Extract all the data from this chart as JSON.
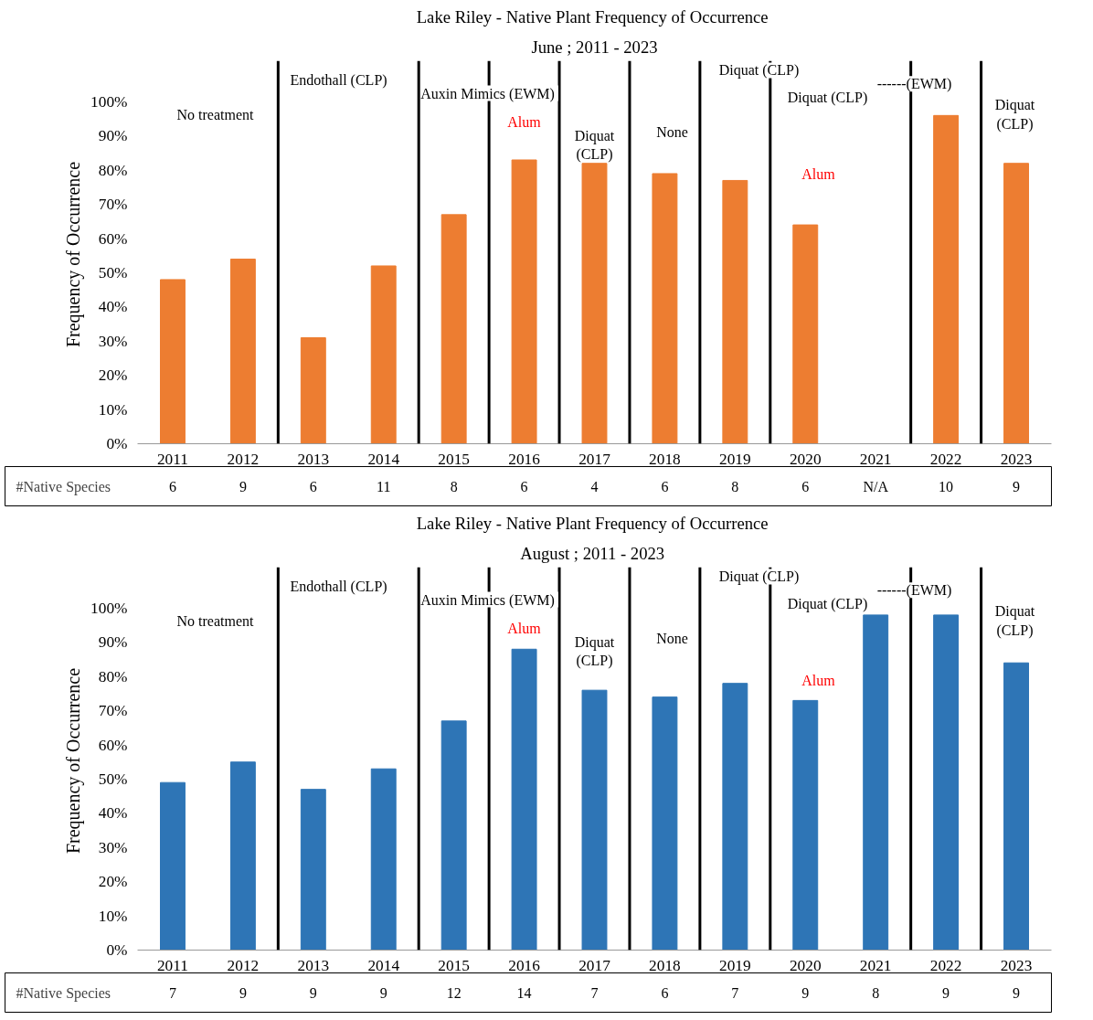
{
  "chart_data": [
    {
      "type": "bar",
      "title": "Lake Riley - Native Plant Frequency  of Occurrence",
      "subtitle": "June ; 2011 - 2023",
      "ylabel": "Frequency  of Occurrence",
      "x": [
        2011,
        2012,
        2013,
        2014,
        2015,
        2016,
        2017,
        2018,
        2019,
        2020,
        2021,
        2022,
        2023
      ],
      "values": [
        48,
        54,
        31,
        52,
        67,
        83,
        82,
        79,
        77,
        64,
        null,
        96,
        82
      ],
      "color": "#ed7d31",
      "xlim": [
        2010.5,
        2023.5
      ],
      "xticks": [
        2011,
        2012,
        2013,
        2014,
        2015,
        2016,
        2017,
        2018,
        2019,
        2020,
        2021,
        2022,
        2023
      ],
      "ylim": [
        0,
        112
      ],
      "yticks": [
        {
          "value": 0,
          "label": "0%"
        },
        {
          "value": 10,
          "label": "10%"
        },
        {
          "value": 20,
          "label": "20%"
        },
        {
          "value": 30,
          "label": "30%"
        },
        {
          "value": 40,
          "label": "40%"
        },
        {
          "value": 50,
          "label": "50%"
        },
        {
          "value": 60,
          "label": "60%"
        },
        {
          "value": 70,
          "label": "70%"
        },
        {
          "value": 80,
          "label": "80%"
        },
        {
          "value": 90,
          "label": "90%"
        },
        {
          "value": 100,
          "label": "100%"
        }
      ],
      "grid": false,
      "ref_lines": [
        {
          "axis": "x",
          "value": 2012.5,
          "color": "#000000"
        },
        {
          "axis": "x",
          "value": 2014.5,
          "color": "#000000"
        },
        {
          "axis": "x",
          "value": 2015.5,
          "color": "#000000"
        },
        {
          "axis": "x",
          "value": 2016.5,
          "color": "#000000"
        },
        {
          "axis": "x",
          "value": 2017.5,
          "color": "#000000"
        },
        {
          "axis": "x",
          "value": 2018.5,
          "color": "#000000"
        },
        {
          "axis": "x",
          "value": 2019.5,
          "color": "#000000"
        },
        {
          "axis": "x",
          "value": 2021.5,
          "color": "#000000"
        },
        {
          "axis": "x",
          "value": 2022.5,
          "color": "#000000"
        }
      ],
      "annotations": [
        "No treatment",
        "Endothall (CLP)",
        "Auxin Mimics  (EWM)",
        "Alum",
        "Diquat\n(CLP)",
        "None",
        "Diquat (CLP)",
        "Diquat (CLP)",
        "Alum",
        "------(EWM)",
        "Diquat\n(CLP)"
      ]
    },
    {
      "type": "other",
      "title": "#Native Species",
      "annotations": [
        "6",
        "9",
        "6",
        "11",
        "8",
        "6",
        "4",
        "6",
        "8",
        "6",
        "N/A",
        "10",
        "9"
      ]
    },
    {
      "type": "bar",
      "title": "Lake Riley - Native Plant Frequency  of Occurrence",
      "subtitle": "August  ; 2011 - 2023",
      "ylabel": "Frequency  of Occurrence",
      "x": [
        2011,
        2012,
        2013,
        2014,
        2015,
        2016,
        2017,
        2018,
        2019,
        2020,
        2021,
        2022,
        2023
      ],
      "values": [
        49,
        55,
        47,
        53,
        67,
        88,
        76,
        74,
        78,
        73,
        98,
        98,
        84
      ],
      "color": "#2e75b6",
      "xlim": [
        2010.5,
        2023.5
      ],
      "xticks": [
        2011,
        2012,
        2013,
        2014,
        2015,
        2016,
        2017,
        2018,
        2019,
        2020,
        2021,
        2022,
        2023
      ],
      "ylim": [
        0,
        112
      ],
      "yticks": [
        {
          "value": 0,
          "label": "0%"
        },
        {
          "value": 10,
          "label": "10%"
        },
        {
          "value": 20,
          "label": "20%"
        },
        {
          "value": 30,
          "label": "30%"
        },
        {
          "value": 40,
          "label": "40%"
        },
        {
          "value": 50,
          "label": "50%"
        },
        {
          "value": 60,
          "label": "60%"
        },
        {
          "value": 70,
          "label": "70%"
        },
        {
          "value": 80,
          "label": "80%"
        },
        {
          "value": 90,
          "label": "90%"
        },
        {
          "value": 100,
          "label": "100%"
        }
      ],
      "grid": false,
      "ref_lines": [
        {
          "axis": "x",
          "value": 2012.5,
          "color": "#000000"
        },
        {
          "axis": "x",
          "value": 2014.5,
          "color": "#000000"
        },
        {
          "axis": "x",
          "value": 2015.5,
          "color": "#000000"
        },
        {
          "axis": "x",
          "value": 2016.5,
          "color": "#000000"
        },
        {
          "axis": "x",
          "value": 2017.5,
          "color": "#000000"
        },
        {
          "axis": "x",
          "value": 2018.5,
          "color": "#000000"
        },
        {
          "axis": "x",
          "value": 2019.5,
          "color": "#000000"
        },
        {
          "axis": "x",
          "value": 2021.5,
          "color": "#000000"
        },
        {
          "axis": "x",
          "value": 2022.5,
          "color": "#000000"
        }
      ],
      "annotations": [
        "No treatment",
        "Endothall (CLP)",
        "Auxin Mimics  (EWM)",
        "Alum",
        "Diquat\n(CLP)",
        "None",
        "Diquat (CLP)",
        "Diquat (CLP)",
        "Alum",
        "------(EWM)",
        "Diquat\n(CLP)"
      ]
    },
    {
      "type": "other",
      "title": "#Native Species",
      "annotations": [
        "7",
        "9",
        "9",
        "9",
        "12",
        "14",
        "7",
        "6",
        "7",
        "9",
        "8",
        "9",
        "9"
      ]
    }
  ]
}
